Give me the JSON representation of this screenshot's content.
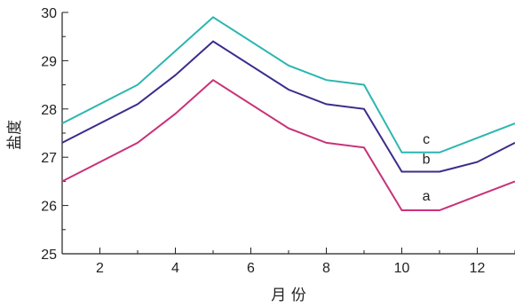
{
  "chart_data": {
    "type": "line",
    "xlabel": "月 份",
    "ylabel": "盐度",
    "xlim": [
      1,
      13
    ],
    "ylim": [
      25,
      30
    ],
    "xticks": [
      2,
      4,
      6,
      8,
      10,
      12
    ],
    "yticks": [
      25,
      26,
      27,
      28,
      29,
      30
    ],
    "grid": false,
    "x": [
      1,
      3,
      4,
      5,
      7,
      8,
      9,
      10,
      11,
      12,
      13
    ],
    "series": [
      {
        "name": "a",
        "color": "#c8327a",
        "values": [
          26.5,
          27.3,
          27.9,
          28.6,
          27.6,
          27.3,
          27.2,
          25.9,
          25.9,
          26.2,
          26.5
        ]
      },
      {
        "name": "b",
        "color": "#3b2c8c",
        "values": [
          27.3,
          28.1,
          28.7,
          29.4,
          28.4,
          28.1,
          28.0,
          26.7,
          26.7,
          26.9,
          27.3
        ]
      },
      {
        "name": "c",
        "color": "#2cb6b0",
        "values": [
          27.7,
          28.5,
          29.2,
          29.9,
          28.9,
          28.6,
          28.5,
          27.1,
          27.1,
          27.4,
          27.7
        ]
      }
    ]
  }
}
